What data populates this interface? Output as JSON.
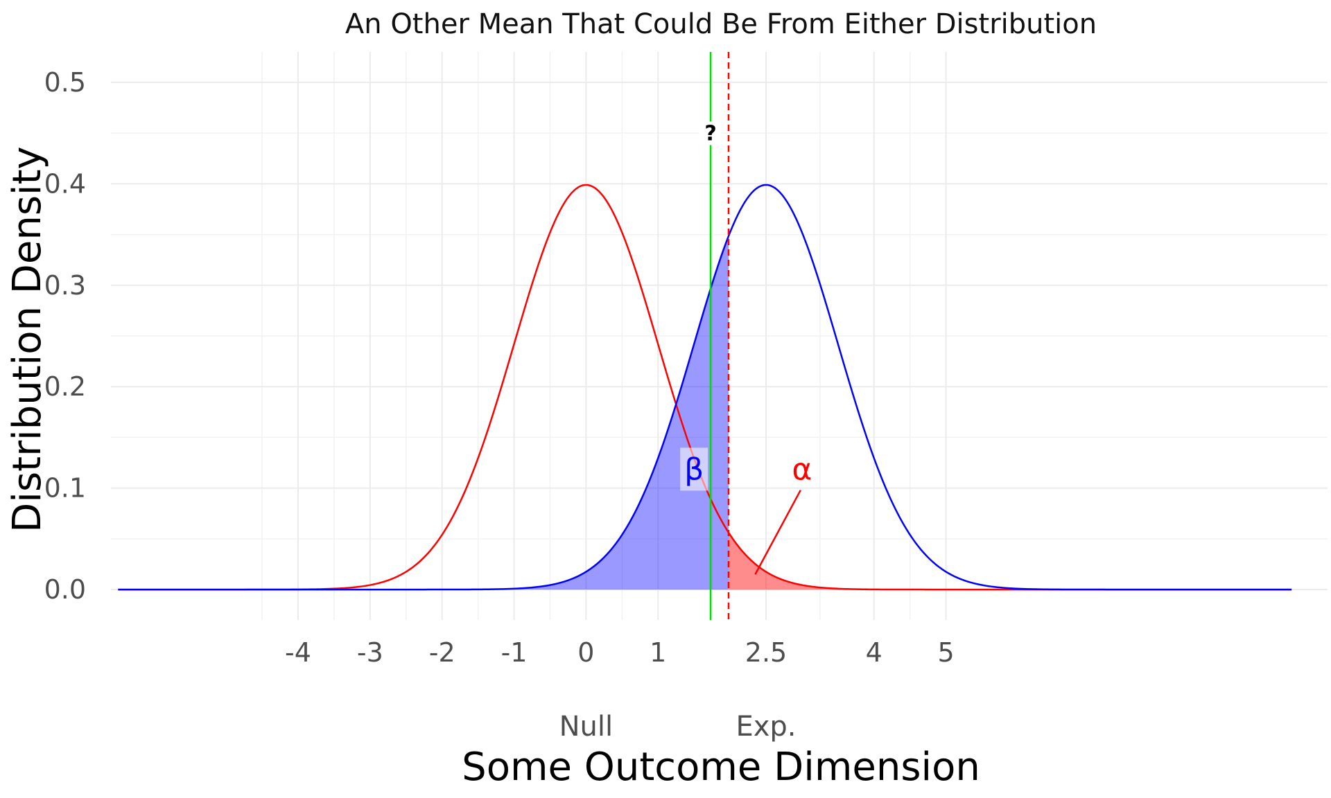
{
  "chart_data": {
    "type": "area",
    "title": "An Other Mean That Could Be From Either Distribution",
    "xlabel": "Some Outcome Dimension",
    "ylabel": "Distribution Density",
    "xlim": [
      -6.6,
      10.3
    ],
    "ylim": [
      -0.03,
      0.53
    ],
    "x_tick_labels": [
      {
        "x": -4,
        "label": "-4"
      },
      {
        "x": -3,
        "label": "-3"
      },
      {
        "x": -2,
        "label": "-2"
      },
      {
        "x": -1,
        "label": "-1"
      },
      {
        "x": 0,
        "label": "0"
      },
      {
        "x": 1,
        "label": "1"
      },
      {
        "x": 2.5,
        "label": "2.5"
      },
      {
        "x": 4,
        "label": "4"
      },
      {
        "x": 5,
        "label": "5"
      }
    ],
    "x_group_labels": [
      {
        "x": 0,
        "label": "Null"
      },
      {
        "x": 2.5,
        "label": "Exp."
      }
    ],
    "y_ticks": [
      0.0,
      0.1,
      0.2,
      0.3,
      0.4,
      0.5
    ],
    "y_tick_labels": [
      "0.0",
      "0.1",
      "0.2",
      "0.3",
      "0.4",
      "0.5"
    ],
    "grid": true,
    "series": [
      {
        "kind": "normal",
        "mean": 0,
        "sd": 1,
        "x_range": [
          -6.5,
          9.8
        ],
        "color": "#ff0000"
      },
      {
        "kind": "normal",
        "mean": 2.5,
        "sd": 1,
        "x_range": [
          -6.5,
          9.8
        ],
        "color": "#0000ff"
      }
    ],
    "critical_value": {
      "x": 1.98,
      "color": "#ff0000",
      "style": "dashed"
    },
    "observed_mean": {
      "x": 1.73,
      "color": "#00dd00",
      "label": "?"
    },
    "shaded_regions": [
      {
        "label": "β",
        "series_mean": 2.5,
        "from": -6.5,
        "to": 1.98,
        "color": "#0000ff",
        "opacity": 0.4,
        "label_color": "#0000ff",
        "label_at": [
          1.5,
          0.118
        ]
      },
      {
        "label": "α",
        "series_mean": 0,
        "from": 1.98,
        "to": 9.8,
        "color": "#ff0000",
        "opacity": 0.45,
        "label_color": "#ff0000",
        "label_at": [
          3.0,
          0.118
        ]
      }
    ]
  }
}
